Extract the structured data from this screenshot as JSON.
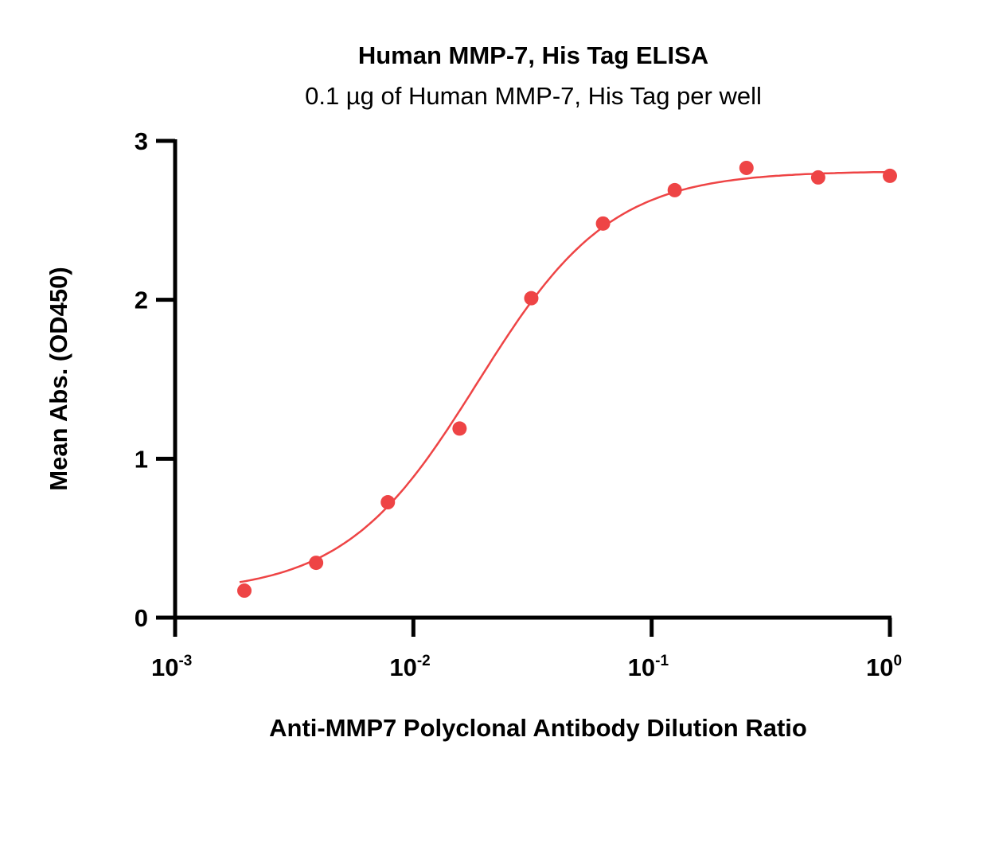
{
  "chart_data": {
    "type": "scatter",
    "title": "Human MMP-7, His Tag ELISA",
    "subtitle": "0.1 µg of Human MMP-7, His Tag per well",
    "xlabel": "Anti-MMP7 Polyclonal Antibody  Dilution Ratio",
    "ylabel": "Mean Abs. (OD450)",
    "xscale": "log",
    "xlim": [
      0.001,
      1
    ],
    "ylim": [
      0,
      3
    ],
    "x_ticks": [
      {
        "base": "10",
        "exp": "-3",
        "value": 0.001
      },
      {
        "base": "10",
        "exp": "-2",
        "value": 0.01
      },
      {
        "base": "10",
        "exp": "-1",
        "value": 0.1
      },
      {
        "base": "10",
        "exp": "0",
        "value": 1
      }
    ],
    "y_ticks": [
      "0",
      "1",
      "2",
      "3"
    ],
    "grid": false,
    "series": [
      {
        "name": "Mean Abs.",
        "color": "#EE4445",
        "x": [
          0.001953,
          0.003906,
          0.007813,
          0.015625,
          0.03125,
          0.0625,
          0.125,
          0.25,
          0.5,
          1
        ],
        "y": [
          0.17,
          0.345,
          0.726,
          1.19,
          2.01,
          2.48,
          2.69,
          2.83,
          2.77,
          2.78
        ],
        "fit": {
          "model": "4PL",
          "bottom": 0.15,
          "top": 2.81,
          "ec50": 0.0186,
          "hill": 1.55
        }
      }
    ]
  }
}
